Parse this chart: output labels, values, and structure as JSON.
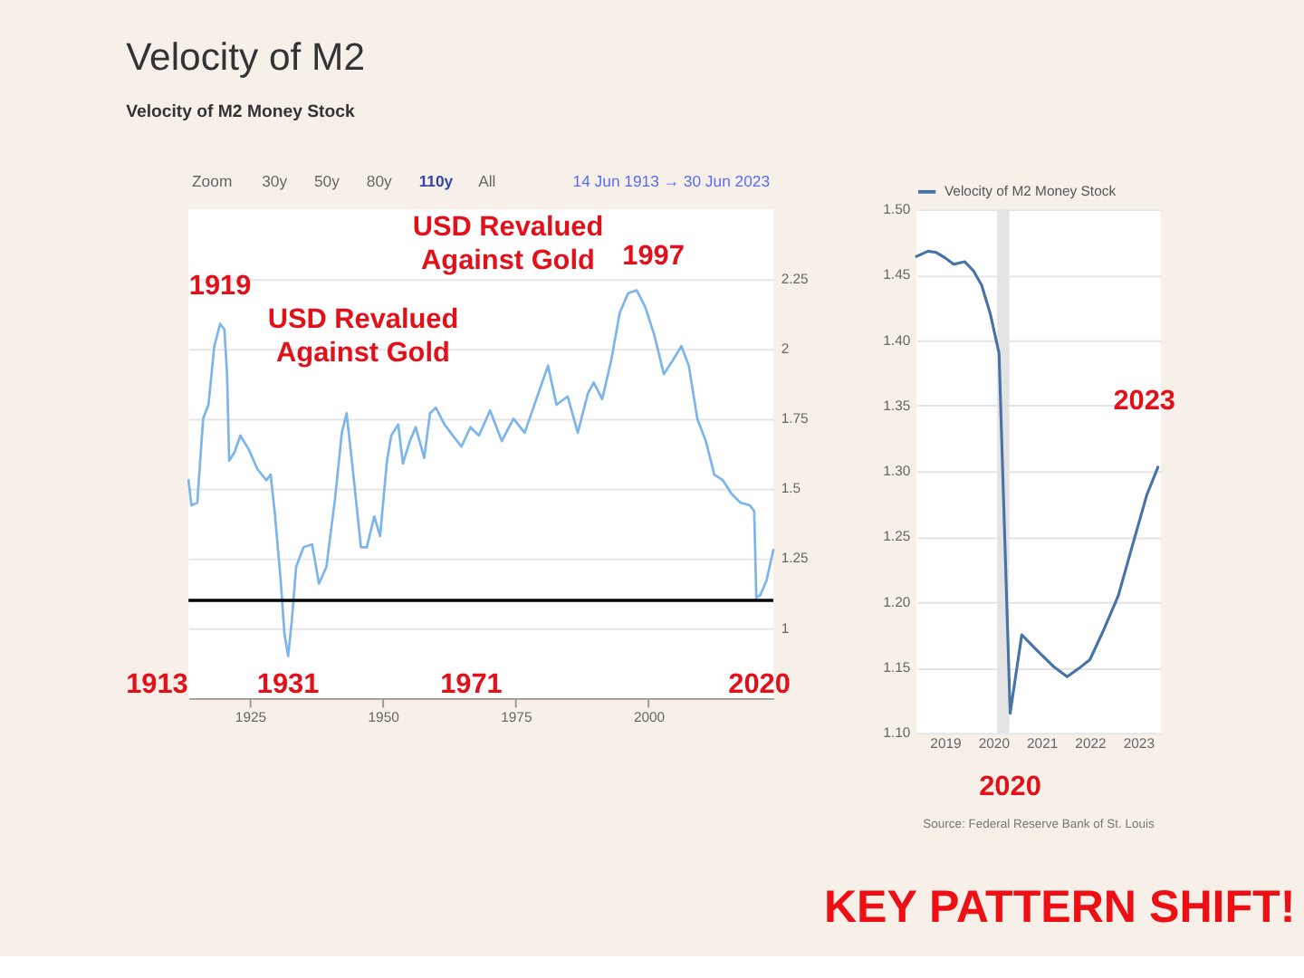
{
  "chart_data": [
    {
      "type": "line",
      "title": "Velocity of M2",
      "subtitle": "Velocity of M2 Money Stock",
      "x": [
        1913.45,
        1914.0,
        1915.1,
        1916.2,
        1917.2,
        1918.3,
        1919.4,
        1920.2,
        1920.7,
        1921.1,
        1922.1,
        1923.2,
        1924.8,
        1926.4,
        1928.1,
        1928.9,
        1929.7,
        1930.8,
        1931.5,
        1932.2,
        1932.9,
        1933.7,
        1935.1,
        1936.7,
        1938.0,
        1939.4,
        1941.0,
        1942.3,
        1943.2,
        1944.3,
        1945.9,
        1947.0,
        1948.4,
        1949.5,
        1950.8,
        1951.6,
        1952.9,
        1953.8,
        1955.1,
        1956.2,
        1957.8,
        1958.9,
        1960.0,
        1961.6,
        1963.2,
        1964.8,
        1966.5,
        1968.1,
        1970.2,
        1972.4,
        1974.6,
        1976.7,
        1978.9,
        1981.1,
        1982.7,
        1984.8,
        1986.7,
        1988.6,
        1989.7,
        1991.3,
        1993.0,
        1994.6,
        1996.2,
        1997.8,
        1999.4,
        2001.1,
        2002.9,
        2004.6,
        2006.2,
        2007.6,
        2009.2,
        2010.8,
        2012.4,
        2014.0,
        2015.7,
        2017.3,
        2019.1,
        2019.9,
        2020.3,
        2021.1,
        2022.2,
        2023.5
      ],
      "series": [
        {
          "color": "#7cb5ec",
          "values": [
            1.53,
            1.44,
            1.45,
            1.75,
            1.8,
            2.01,
            2.09,
            2.07,
            1.91,
            1.6,
            1.63,
            1.69,
            1.64,
            1.57,
            1.53,
            1.55,
            1.41,
            1.17,
            0.98,
            0.9,
            1.03,
            1.22,
            1.29,
            1.3,
            1.16,
            1.22,
            1.46,
            1.7,
            1.77,
            1.58,
            1.29,
            1.29,
            1.4,
            1.33,
            1.6,
            1.69,
            1.73,
            1.59,
            1.67,
            1.72,
            1.61,
            1.77,
            1.79,
            1.73,
            1.69,
            1.65,
            1.72,
            1.69,
            1.78,
            1.67,
            1.75,
            1.7,
            1.82,
            1.94,
            1.8,
            1.83,
            1.7,
            1.84,
            1.88,
            1.82,
            1.96,
            2.13,
            2.2,
            2.21,
            2.15,
            2.05,
            1.91,
            1.96,
            2.01,
            1.94,
            1.75,
            1.67,
            1.55,
            1.53,
            1.48,
            1.45,
            1.44,
            1.42,
            1.11,
            1.12,
            1.17,
            1.28
          ]
        }
      ],
      "xlim": [
        1913.45,
        2023.5
      ],
      "xticks": [
        1925,
        1950,
        1975,
        2000
      ],
      "ylim": [
        0.75,
        2.5
      ],
      "yticks": [
        1,
        1.25,
        1.5,
        1.75,
        2,
        2.25
      ],
      "grid": "y",
      "ref_lines": [
        {
          "axis": "y",
          "value": 1.1,
          "color": "#000000"
        }
      ],
      "annotations": [
        "Zoom",
        "30y",
        "50y",
        "80y",
        "110y",
        "All",
        "14 Jun 1913 → 30 Jun 2023",
        {
          "text": "1919",
          "x": 1919.4,
          "y": 2.09
        },
        "USD Revalued Against Gold",
        "USD Revalued Against Gold",
        {
          "text": "1997",
          "x": 1997,
          "y": 2.21
        },
        "1913",
        "1931",
        "1971",
        "2020"
      ]
    },
    {
      "type": "line",
      "x": [
        2018.41,
        2018.65,
        2018.82,
        2019.0,
        2019.18,
        2019.41,
        2019.59,
        2019.76,
        2019.94,
        2020.12,
        2020.35,
        2020.59,
        2020.88,
        2021.24,
        2021.53,
        2021.76,
        2022.0,
        2022.29,
        2022.59,
        2022.88,
        2023.18,
        2023.41
      ],
      "series": [
        {
          "name": "Velocity of M2 Money Stock",
          "color": "#4572a7",
          "values": [
            1.464,
            1.468,
            1.467,
            1.463,
            1.458,
            1.46,
            1.453,
            1.442,
            1.42,
            1.39,
            1.115,
            1.175,
            1.164,
            1.151,
            1.143,
            1.149,
            1.156,
            1.179,
            1.205,
            1.243,
            1.282,
            1.303
          ]
        }
      ],
      "xlim": [
        2018.41,
        2023.47
      ],
      "xticks": [
        2019,
        2020,
        2021,
        2022,
        2023
      ],
      "ylim": [
        1.1,
        1.5
      ],
      "yticks": [
        {
          "value": 1.1,
          "label": "1.10"
        },
        1.15,
        {
          "value": 1.2,
          "label": "1.20"
        },
        1.25,
        {
          "value": 1.3,
          "label": "1.30"
        },
        1.35,
        {
          "value": 1.4,
          "label": "1.40"
        },
        1.45,
        {
          "value": 1.5,
          "label": "1.50"
        }
      ],
      "grid": "y",
      "legend": "top left",
      "bands": [
        {
          "axis": "x",
          "from": 2020.08,
          "to": 2020.33,
          "color": "#e3e3e3"
        }
      ],
      "annotations": [
        {
          "text": "2020",
          "x": 2020.35,
          "y": 1.115
        },
        {
          "text": "2023",
          "x": 2023.41,
          "y": 1.303
        },
        "KEY PATTERN SHIFT!",
        "Source: Federal Reserve Bank of St. Louis"
      ]
    }
  ]
}
